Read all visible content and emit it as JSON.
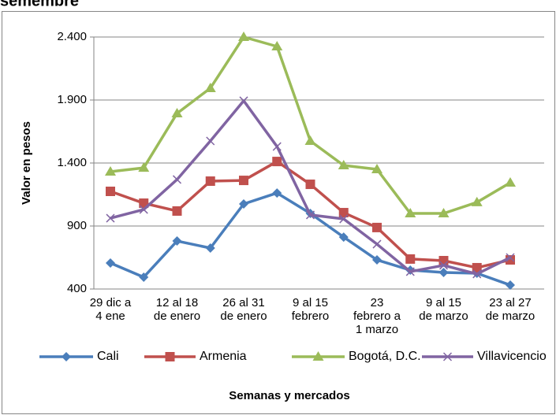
{
  "chart_data": {
    "type": "line",
    "title": "semembre",
    "y_label": "Valor en pesos",
    "x_label": "Semanas y mercados",
    "categories": [
      "29 dic a\n4 ene",
      null,
      "12 al 18\nde enero",
      null,
      "26 al 31\nde enero",
      null,
      "9 al 15\nfebrero",
      null,
      "23\nfebrero a\n1 marzo",
      null,
      "9 al 15\nde marzo",
      null,
      "23 al 27\nde marzo"
    ],
    "ylim": [
      400,
      2400
    ],
    "yticks": [
      400,
      900,
      {
        "value": 1400,
        "label": "1.400"
      },
      {
        "value": 1900,
        "label": "1.900"
      },
      {
        "value": 2400,
        "label": "2.400"
      }
    ],
    "grid": true,
    "legend": "bottom",
    "series": [
      {
        "name": "Cali",
        "color": "#4a7ebb",
        "marker": "diamond",
        "values": [
          606,
          494,
          781,
          725,
          1075,
          1162,
          1000,
          812,
          631,
          550,
          531,
          525,
          431
        ]
      },
      {
        "name": "Armenia",
        "color": "#c0504d",
        "marker": "square",
        "values": [
          1175,
          1081,
          1019,
          1256,
          1262,
          1412,
          1231,
          1006,
          888,
          638,
          625,
          569,
          631
        ]
      },
      {
        "name": "Bogotá, D.C.",
        "color": "#9bbb59",
        "marker": "triangle",
        "values": [
          1331,
          1362,
          1794,
          1994,
          2400,
          2325,
          1575,
          1381,
          1350,
          1000,
          1000,
          1088,
          1244
        ]
      },
      {
        "name": "Villavicencio",
        "color": "#8064a2",
        "marker": "x",
        "values": [
          962,
          1031,
          1269,
          1575,
          1894,
          1531,
          988,
          956,
          756,
          538,
          588,
          519,
          650
        ]
      }
    ]
  }
}
